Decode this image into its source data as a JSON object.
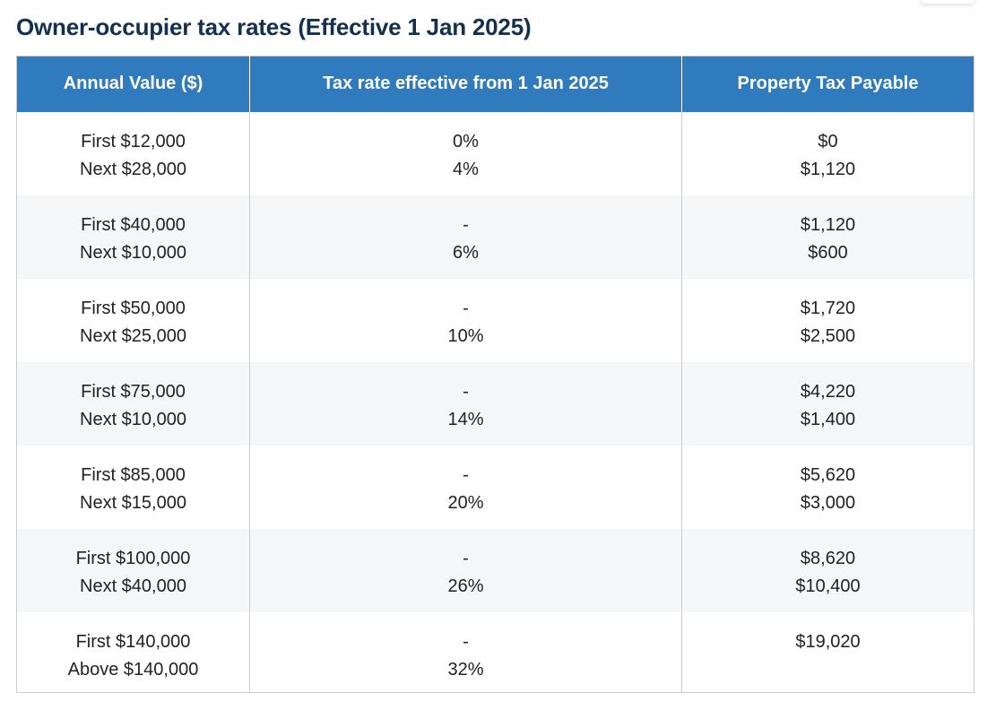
{
  "title": "Owner-occupier tax rates (Effective 1 Jan 2025)",
  "table": {
    "headers": {
      "annual_value": "Annual Value ($)",
      "tax_rate": "Tax rate effective from 1 Jan 2025",
      "tax_payable": "Property Tax Payable"
    },
    "rows": [
      {
        "annual_value": [
          "First $12,000",
          "Next $28,000"
        ],
        "tax_rate": [
          "0%",
          "4%"
        ],
        "tax_payable": [
          "$0",
          "$1,120"
        ]
      },
      {
        "annual_value": [
          "First $40,000",
          "Next $10,000"
        ],
        "tax_rate": [
          "-",
          "6%"
        ],
        "tax_payable": [
          "$1,120",
          "$600"
        ]
      },
      {
        "annual_value": [
          "First $50,000",
          "Next $25,000"
        ],
        "tax_rate": [
          "-",
          "10%"
        ],
        "tax_payable": [
          "$1,720",
          "$2,500"
        ]
      },
      {
        "annual_value": [
          "First $75,000",
          "Next $10,000"
        ],
        "tax_rate": [
          "-",
          "14%"
        ],
        "tax_payable": [
          "$4,220",
          "$1,400"
        ]
      },
      {
        "annual_value": [
          "First $85,000",
          "Next $15,000"
        ],
        "tax_rate": [
          "-",
          "20%"
        ],
        "tax_payable": [
          "$5,620",
          "$3,000"
        ]
      },
      {
        "annual_value": [
          "First $100,000",
          "Next $40,000"
        ],
        "tax_rate": [
          "-",
          "26%"
        ],
        "tax_payable": [
          "$8,620",
          "$10,400"
        ]
      },
      {
        "annual_value": [
          "First $140,000",
          "Above $140,000"
        ],
        "tax_rate": [
          "-",
          "32%"
        ],
        "tax_payable": [
          "$19,020",
          ""
        ]
      }
    ]
  },
  "colors": {
    "header_bg": "#2f7bbd",
    "title": "#12304f",
    "row_stripe": "#f4f6f8"
  }
}
